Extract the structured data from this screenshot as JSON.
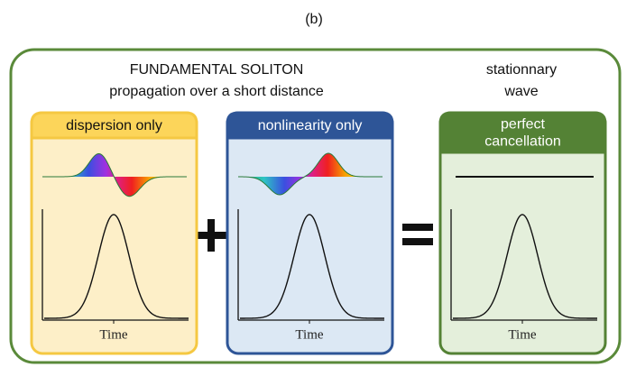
{
  "title": "(b)",
  "header": {
    "lines": [
      "FUNDAMENTAL SOLITON",
      "propagation over a short distance"
    ]
  },
  "result_header": {
    "lines": [
      "stationnary",
      "wave"
    ]
  },
  "panels": [
    {
      "label": [
        "dispersion only"
      ],
      "axis_label": "Time"
    },
    {
      "label": [
        "nonlinearity only"
      ],
      "axis_label": "Time"
    },
    {
      "label": [
        "perfect",
        "cancellation"
      ],
      "axis_label": "Time"
    }
  ]
}
